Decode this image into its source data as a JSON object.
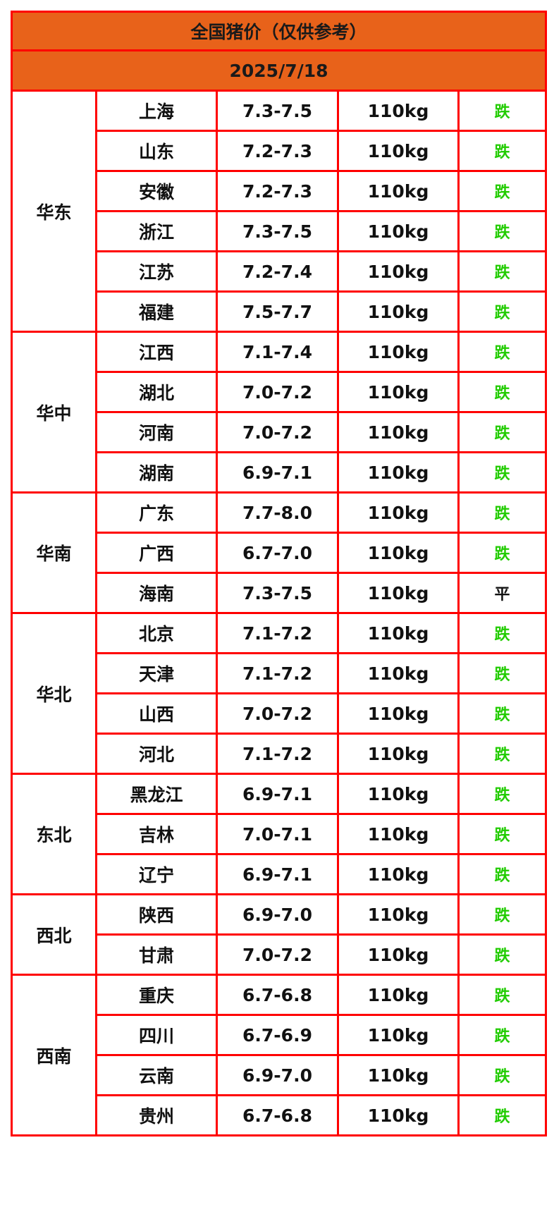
{
  "title": "全国猪价（仅供参考）",
  "date": "2025/7/18",
  "colors": {
    "header_bg": "#e8621a",
    "border": "#ff0000",
    "fall": "#22cc00",
    "flat": "#111111"
  },
  "regions": [
    {
      "name": "华东",
      "rows": [
        {
          "province": "上海",
          "price": "7.3-7.5",
          "weight": "110kg",
          "trend": "跌"
        },
        {
          "province": "山东",
          "price": "7.2-7.3",
          "weight": "110kg",
          "trend": "跌"
        },
        {
          "province": "安徽",
          "price": "7.2-7.3",
          "weight": "110kg",
          "trend": "跌"
        },
        {
          "province": "浙江",
          "price": "7.3-7.5",
          "weight": "110kg",
          "trend": "跌"
        },
        {
          "province": "江苏",
          "price": "7.2-7.4",
          "weight": "110kg",
          "trend": "跌"
        },
        {
          "province": "福建",
          "price": "7.5-7.7",
          "weight": "110kg",
          "trend": "跌"
        }
      ]
    },
    {
      "name": "华中",
      "rows": [
        {
          "province": "江西",
          "price": "7.1-7.4",
          "weight": "110kg",
          "trend": "跌"
        },
        {
          "province": "湖北",
          "price": "7.0-7.2",
          "weight": "110kg",
          "trend": "跌"
        },
        {
          "province": "河南",
          "price": "7.0-7.2",
          "weight": "110kg",
          "trend": "跌"
        },
        {
          "province": "湖南",
          "price": "6.9-7.1",
          "weight": "110kg",
          "trend": "跌"
        }
      ]
    },
    {
      "name": "华南",
      "rows": [
        {
          "province": "广东",
          "price": "7.7-8.0",
          "weight": "110kg",
          "trend": "跌"
        },
        {
          "province": "广西",
          "price": "6.7-7.0",
          "weight": "110kg",
          "trend": "跌"
        },
        {
          "province": "海南",
          "price": "7.3-7.5",
          "weight": "110kg",
          "trend": "平"
        }
      ]
    },
    {
      "name": "华北",
      "rows": [
        {
          "province": "北京",
          "price": "7.1-7.2",
          "weight": "110kg",
          "trend": "跌"
        },
        {
          "province": "天津",
          "price": "7.1-7.2",
          "weight": "110kg",
          "trend": "跌"
        },
        {
          "province": "山西",
          "price": "7.0-7.2",
          "weight": "110kg",
          "trend": "跌"
        },
        {
          "province": "河北",
          "price": "7.1-7.2",
          "weight": "110kg",
          "trend": "跌"
        }
      ]
    },
    {
      "name": "东北",
      "rows": [
        {
          "province": "黑龙江",
          "price": "6.9-7.1",
          "weight": "110kg",
          "trend": "跌"
        },
        {
          "province": "吉林",
          "price": "7.0-7.1",
          "weight": "110kg",
          "trend": "跌"
        },
        {
          "province": "辽宁",
          "price": "6.9-7.1",
          "weight": "110kg",
          "trend": "跌"
        }
      ]
    },
    {
      "name": "西北",
      "rows": [
        {
          "province": "陕西",
          "price": "6.9-7.0",
          "weight": "110kg",
          "trend": "跌"
        },
        {
          "province": "甘肃",
          "price": "7.0-7.2",
          "weight": "110kg",
          "trend": "跌"
        }
      ]
    },
    {
      "name": "西南",
      "rows": [
        {
          "province": "重庆",
          "price": "6.7-6.8",
          "weight": "110kg",
          "trend": "跌"
        },
        {
          "province": "四川",
          "price": "6.7-6.9",
          "weight": "110kg",
          "trend": "跌"
        },
        {
          "province": "云南",
          "price": "6.9-7.0",
          "weight": "110kg",
          "trend": "跌"
        },
        {
          "province": "贵州",
          "price": "6.7-6.8",
          "weight": "110kg",
          "trend": "跌"
        }
      ]
    }
  ]
}
